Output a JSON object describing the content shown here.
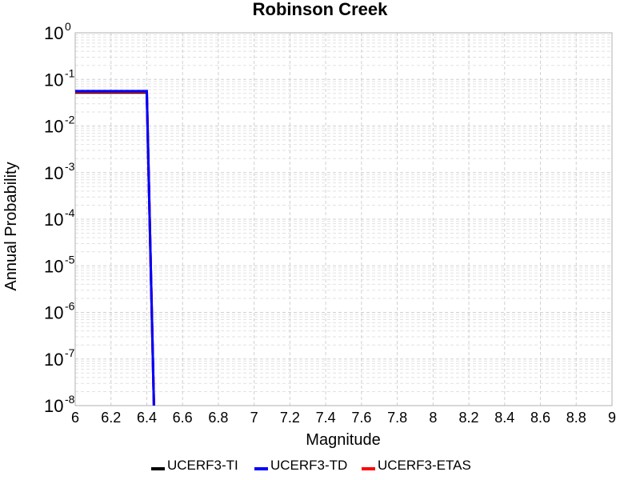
{
  "chart_data": {
    "type": "line",
    "title": "Robinson Creek",
    "xlabel": "Magnitude",
    "ylabel": "Annual Probability",
    "xlim": [
      6,
      9
    ],
    "ylim": [
      1e-08,
      1
    ],
    "y_scale": "log",
    "grid": true,
    "legend_placement": "bottom",
    "x_ticks": [
      "6",
      "6.2",
      "6.4",
      "6.6",
      "6.8",
      "7",
      "7.2",
      "7.4",
      "7.6",
      "7.8",
      "8",
      "8.2",
      "8.4",
      "8.6",
      "8.8",
      "9"
    ],
    "y_ticks": [
      {
        "base": "10",
        "exp": "0"
      },
      {
        "base": "10",
        "exp": "-1"
      },
      {
        "base": "10",
        "exp": "-2"
      },
      {
        "base": "10",
        "exp": "-3"
      },
      {
        "base": "10",
        "exp": "-4"
      },
      {
        "base": "10",
        "exp": "-5"
      },
      {
        "base": "10",
        "exp": "-6"
      },
      {
        "base": "10",
        "exp": "-7"
      },
      {
        "base": "10",
        "exp": "-8"
      }
    ],
    "series": [
      {
        "name": "UCERF3-TI",
        "color": "#000000",
        "x": [
          6.0,
          6.4,
          6.44
        ],
        "y": [
          0.052,
          0.052,
          1e-08
        ]
      },
      {
        "name": "UCERF3-ETAS",
        "color": "#ff0000",
        "x": [
          6.0,
          6.4,
          6.44
        ],
        "y": [
          0.054,
          0.054,
          1e-08
        ]
      },
      {
        "name": "UCERF3-TD",
        "color": "#0000ff",
        "x": [
          6.0,
          6.4,
          6.44
        ],
        "y": [
          0.056,
          0.056,
          1e-08
        ]
      }
    ],
    "legend": [
      {
        "name": "UCERF3-TI",
        "color": "#000000"
      },
      {
        "name": "UCERF3-TD",
        "color": "#0000ff"
      },
      {
        "name": "UCERF3-ETAS",
        "color": "#ff0000"
      }
    ]
  }
}
